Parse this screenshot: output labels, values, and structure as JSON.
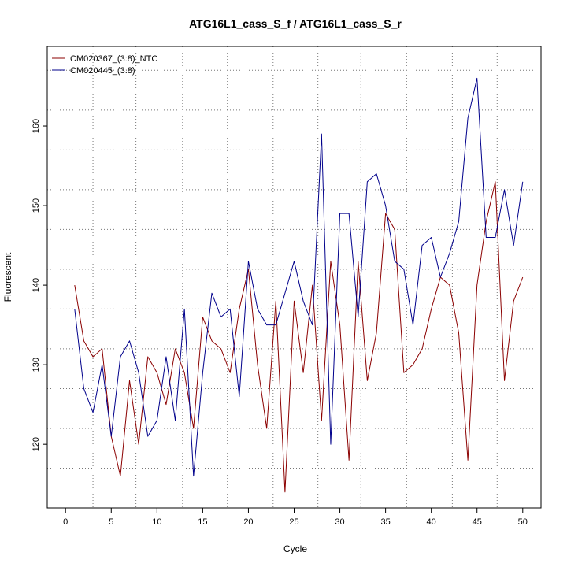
{
  "chart_data": {
    "type": "line",
    "title": "ATG16L1_cass_S_f / ATG16L1_cass_S_r",
    "xlabel": "Cycle",
    "ylabel": "Fluorescent",
    "xlim": [
      -2,
      52
    ],
    "ylim": [
      112,
      170
    ],
    "xticks": [
      0,
      5,
      10,
      15,
      20,
      25,
      30,
      35,
      40,
      45,
      50
    ],
    "yticks": [
      120,
      130,
      140,
      150,
      160
    ],
    "grid_x": [
      3,
      7.7,
      12.8,
      17.7,
      22.7,
      27.6,
      32.3,
      37.3,
      42.3,
      47.2
    ],
    "grid_y": [
      117,
      122,
      127,
      132,
      137,
      142,
      147,
      152,
      157,
      162,
      167
    ],
    "legend_position": "top-left",
    "x": [
      1,
      2,
      3,
      4,
      5,
      6,
      7,
      8,
      9,
      10,
      11,
      12,
      13,
      14,
      15,
      16,
      17,
      18,
      19,
      20,
      21,
      22,
      23,
      24,
      25,
      26,
      27,
      28,
      29,
      30,
      31,
      32,
      33,
      34,
      35,
      36,
      37,
      38,
      39,
      40,
      41,
      42,
      43,
      44,
      45,
      46,
      47,
      48,
      49,
      50
    ],
    "series": [
      {
        "name": "CM020367_(3:8)_NTC",
        "color": "#8B0000",
        "values": [
          140,
          133,
          131,
          132,
          121,
          116,
          128,
          120,
          131,
          129,
          125,
          132,
          129,
          122,
          136,
          133,
          132,
          129,
          137,
          142,
          130,
          122,
          138,
          114,
          138,
          129,
          140,
          123,
          143,
          135,
          118,
          143,
          128,
          134,
          149,
          147,
          129,
          130,
          132,
          137,
          141,
          140,
          134,
          118,
          140,
          148,
          153,
          128,
          138,
          141
        ]
      },
      {
        "name": "CM020445_(3:8)",
        "color": "#00008B",
        "values": [
          137,
          127,
          124,
          130,
          121,
          131,
          133,
          129,
          121,
          123,
          131,
          123,
          137,
          116,
          129,
          139,
          136,
          137,
          126,
          143,
          137,
          135,
          135,
          139,
          143,
          138,
          135,
          159,
          120,
          149,
          149,
          136,
          153,
          154,
          150,
          143,
          142,
          135,
          145,
          146,
          141,
          144,
          148,
          161,
          166,
          146,
          146,
          152,
          145,
          153
        ]
      }
    ]
  }
}
